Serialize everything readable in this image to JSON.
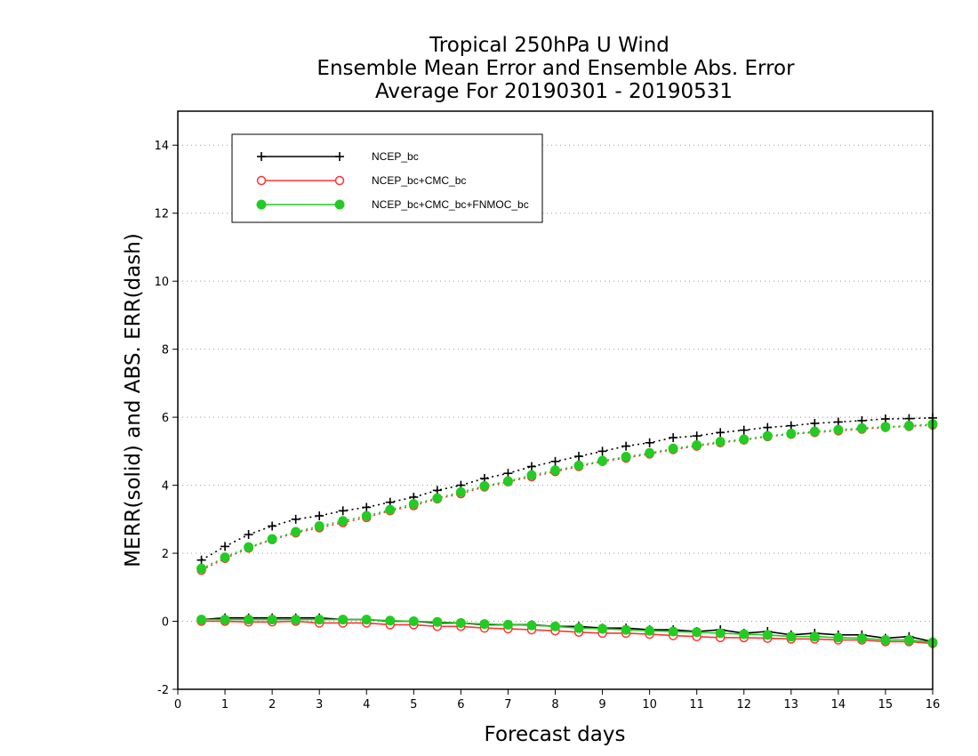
{
  "chart_data": {
    "type": "line",
    "title": [
      "Tropical 250hPa U Wind",
      "Ensemble Mean Error and Ensemble Abs. Error",
      "Average For 20190301 - 20190531"
    ],
    "xlabel": "Forecast days",
    "ylabel": "MERR(solid) and ABS. ERR(dash)",
    "xlim": [
      0,
      16
    ],
    "ylim": [
      -2,
      15
    ],
    "xticks": [
      0,
      1,
      2,
      3,
      4,
      5,
      6,
      7,
      8,
      9,
      10,
      11,
      12,
      13,
      14,
      15,
      16
    ],
    "yticks": [
      -2,
      0,
      2,
      4,
      6,
      8,
      10,
      12,
      14
    ],
    "grid": "horizontal dotted",
    "legend_position": "top-left",
    "x": [
      0.5,
      1,
      1.5,
      2,
      2.5,
      3,
      3.5,
      4,
      4.5,
      5,
      5.5,
      6,
      6.5,
      7,
      7.5,
      8,
      8.5,
      9,
      9.5,
      10,
      10.5,
      11,
      11.5,
      12,
      12.5,
      13,
      13.5,
      14,
      14.5,
      15,
      15.5,
      16
    ],
    "series": [
      {
        "name": "NCEP_bc",
        "color": "#000000",
        "marker": "plus",
        "abs_err": [
          1.8,
          2.2,
          2.55,
          2.8,
          3.0,
          3.1,
          3.25,
          3.35,
          3.5,
          3.65,
          3.85,
          4.0,
          4.2,
          4.35,
          4.55,
          4.7,
          4.85,
          5.0,
          5.15,
          5.25,
          5.4,
          5.45,
          5.55,
          5.62,
          5.7,
          5.75,
          5.82,
          5.86,
          5.9,
          5.95,
          5.96,
          5.98
        ],
        "mean_err": [
          0.05,
          0.1,
          0.1,
          0.1,
          0.1,
          0.1,
          0.05,
          0.05,
          0.0,
          0.0,
          -0.05,
          -0.05,
          -0.1,
          -0.1,
          -0.1,
          -0.15,
          -0.15,
          -0.2,
          -0.2,
          -0.25,
          -0.25,
          -0.3,
          -0.25,
          -0.35,
          -0.3,
          -0.4,
          -0.35,
          -0.4,
          -0.4,
          -0.5,
          -0.45,
          -0.6
        ]
      },
      {
        "name": "NCEP_bc+CMC_bc",
        "color": "#ff3333",
        "marker": "open-circle",
        "abs_err": [
          1.5,
          1.85,
          2.15,
          2.4,
          2.6,
          2.75,
          2.9,
          3.05,
          3.25,
          3.4,
          3.6,
          3.75,
          3.95,
          4.1,
          4.25,
          4.4,
          4.55,
          4.7,
          4.8,
          4.92,
          5.05,
          5.15,
          5.25,
          5.33,
          5.43,
          5.5,
          5.55,
          5.6,
          5.65,
          5.7,
          5.73,
          5.77
        ],
        "mean_err": [
          0.0,
          0.0,
          -0.02,
          -0.02,
          0.0,
          -0.05,
          -0.05,
          -0.05,
          -0.1,
          -0.1,
          -0.15,
          -0.15,
          -0.2,
          -0.22,
          -0.25,
          -0.28,
          -0.32,
          -0.35,
          -0.35,
          -0.38,
          -0.42,
          -0.45,
          -0.48,
          -0.48,
          -0.5,
          -0.52,
          -0.52,
          -0.55,
          -0.55,
          -0.6,
          -0.6,
          -0.65
        ]
      },
      {
        "name": "NCEP_bc+CMC_bc+FNMOC_bc",
        "color": "#22cc22",
        "marker": "filled-circle",
        "abs_err": [
          1.55,
          1.88,
          2.18,
          2.42,
          2.63,
          2.8,
          2.95,
          3.1,
          3.28,
          3.45,
          3.62,
          3.8,
          3.98,
          4.12,
          4.3,
          4.44,
          4.58,
          4.72,
          4.84,
          4.95,
          5.08,
          5.18,
          5.28,
          5.35,
          5.45,
          5.52,
          5.58,
          5.63,
          5.68,
          5.72,
          5.75,
          5.8
        ],
        "mean_err": [
          0.05,
          0.05,
          0.05,
          0.05,
          0.05,
          0.05,
          0.05,
          0.05,
          0.02,
          0.0,
          -0.02,
          -0.05,
          -0.08,
          -0.1,
          -0.12,
          -0.15,
          -0.2,
          -0.22,
          -0.25,
          -0.28,
          -0.3,
          -0.32,
          -0.35,
          -0.38,
          -0.4,
          -0.45,
          -0.45,
          -0.48,
          -0.5,
          -0.55,
          -0.55,
          -0.62
        ]
      }
    ]
  }
}
